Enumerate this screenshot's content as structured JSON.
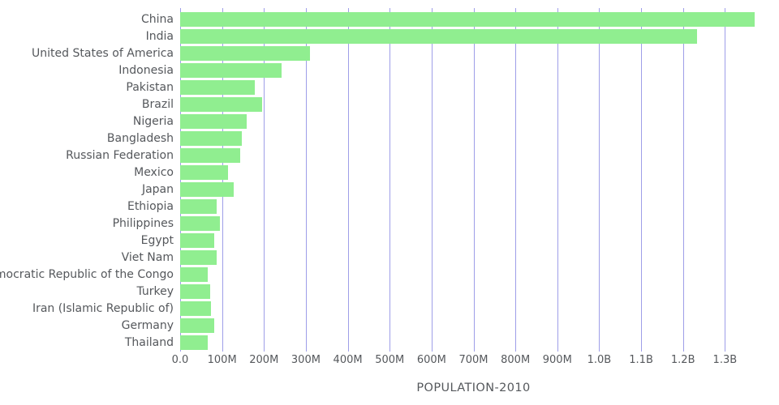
{
  "chart_data": {
    "type": "bar",
    "orientation": "horizontal",
    "title": "",
    "xlabel": "POPULATION-2010",
    "ylabel": "",
    "xlim_millions": [
      0,
      1400
    ],
    "grid": "vertical",
    "legend": "none",
    "bar_color": "#90ee90",
    "gridline_color": "#7d7de0",
    "text_color": "#55585c",
    "x_ticks": [
      {
        "value_millions": 0,
        "label": "0.0"
      },
      {
        "value_millions": 100,
        "label": "100M"
      },
      {
        "value_millions": 200,
        "label": "200M"
      },
      {
        "value_millions": 300,
        "label": "300M"
      },
      {
        "value_millions": 400,
        "label": "400M"
      },
      {
        "value_millions": 500,
        "label": "500M"
      },
      {
        "value_millions": 600,
        "label": "600M"
      },
      {
        "value_millions": 700,
        "label": "700M"
      },
      {
        "value_millions": 800,
        "label": "800M"
      },
      {
        "value_millions": 900,
        "label": "900M"
      },
      {
        "value_millions": 1000,
        "label": "1.0B"
      },
      {
        "value_millions": 1100,
        "label": "1.1B"
      },
      {
        "value_millions": 1200,
        "label": "1.2B"
      },
      {
        "value_millions": 1300,
        "label": "1.3B"
      }
    ],
    "categories": [
      "China",
      "India",
      "United States of America",
      "Indonesia",
      "Pakistan",
      "Brazil",
      "Nigeria",
      "Bangladesh",
      "Russian Federation",
      "Mexico",
      "Japan",
      "Ethiopia",
      "Philippines",
      "Egypt",
      "Viet Nam",
      "Democratic Republic of the Congo",
      "Turkey",
      "Iran (Islamic Republic of)",
      "Germany",
      "Thailand"
    ],
    "values_millions": [
      1370,
      1234,
      309,
      242,
      179,
      196,
      158,
      148,
      143,
      114,
      128,
      87,
      94,
      82,
      88,
      66,
      72,
      74,
      82,
      66
    ]
  }
}
